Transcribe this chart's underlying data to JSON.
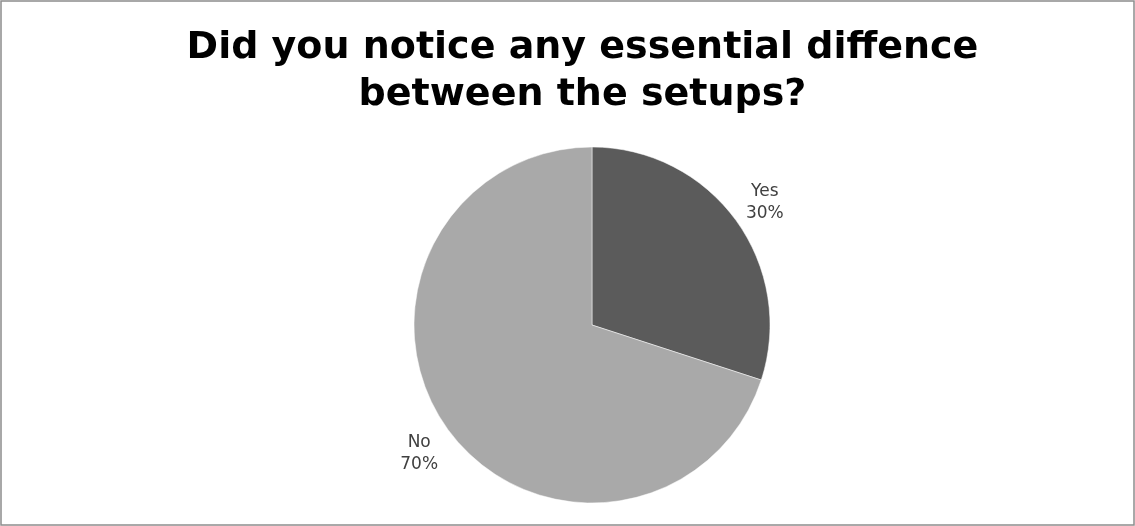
{
  "chart_data": {
    "type": "pie",
    "title": "Did you notice any essential diffence between the setups?",
    "categories": [
      "Yes",
      "No"
    ],
    "values": [
      30,
      70
    ],
    "colors": [
      "#5b5b5b",
      "#a9a9a9"
    ],
    "value_labels": [
      "30%",
      "70%"
    ],
    "legend": false
  }
}
